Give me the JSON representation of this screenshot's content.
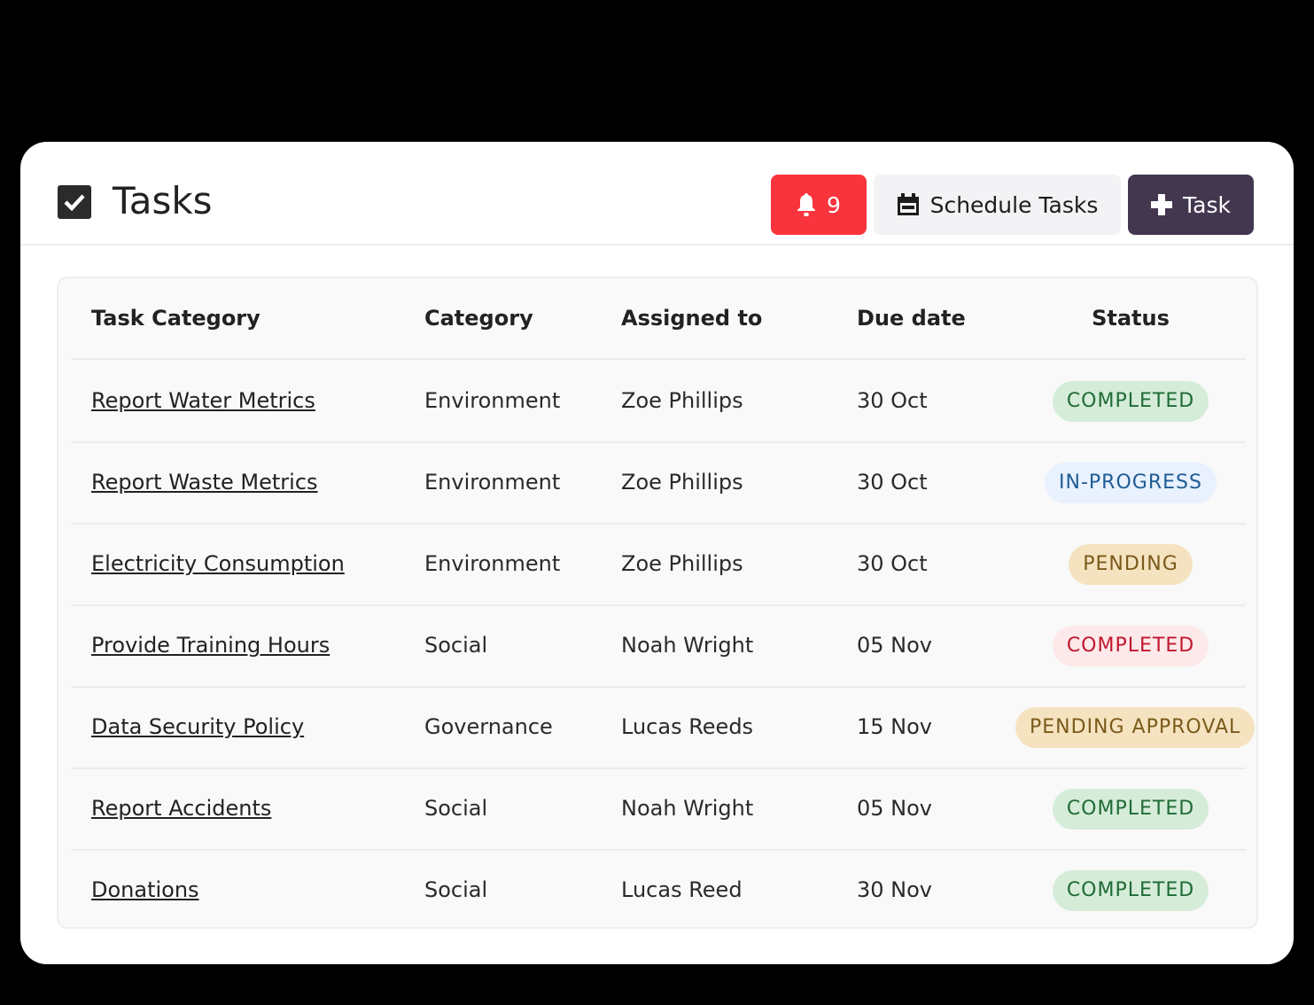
{
  "header": {
    "title": "Tasks",
    "notification_count": "9",
    "schedule_label": "Schedule Tasks",
    "add_label": "Task"
  },
  "table": {
    "columns": [
      "Task Category",
      "Category",
      "Assigned to",
      "Due date",
      "Status"
    ],
    "rows": [
      {
        "task": "Report Water Metrics",
        "category": "Environment",
        "assigned": "Zoe Phillips",
        "due": "30 Oct",
        "status": "COMPLETED",
        "status_color": "green"
      },
      {
        "task": "Report Waste Metrics",
        "category": "Environment",
        "assigned": "Zoe Phillips",
        "due": "30 Oct",
        "status": "IN-PROGRESS",
        "status_color": "blue"
      },
      {
        "task": "Electricity Consumption",
        "category": "Environment",
        "assigned": "Zoe Phillips",
        "due": "30 Oct",
        "status": "PENDING",
        "status_color": "amber"
      },
      {
        "task": "Provide Training Hours",
        "category": "Social",
        "assigned": "Noah Wright",
        "due": "05 Nov",
        "status": "COMPLETED",
        "status_color": "red"
      },
      {
        "task": "Data Security Policy",
        "category": "Governance",
        "assigned": "Lucas Reeds",
        "due": "15 Nov",
        "status": "PENDING APPROVAL",
        "status_color": "amber"
      },
      {
        "task": "Report Accidents",
        "category": "Social",
        "assigned": "Noah Wright",
        "due": "05 Nov",
        "status": "COMPLETED",
        "status_color": "green"
      },
      {
        "task": "Donations",
        "category": "Social",
        "assigned": "Lucas Reed",
        "due": "30 Nov",
        "status": "COMPLETED",
        "status_color": "green"
      }
    ]
  },
  "colors": {
    "green": [
      "#d5ecd9",
      "#1f6b35"
    ],
    "blue": [
      "#e8f1fd",
      "#1f5c96"
    ],
    "amber": [
      "#f5e3c0",
      "#7a5a1a"
    ],
    "red": [
      "#fde9ea",
      "#c0172e"
    ],
    "bell": "#fa343c",
    "add": "#433750"
  }
}
